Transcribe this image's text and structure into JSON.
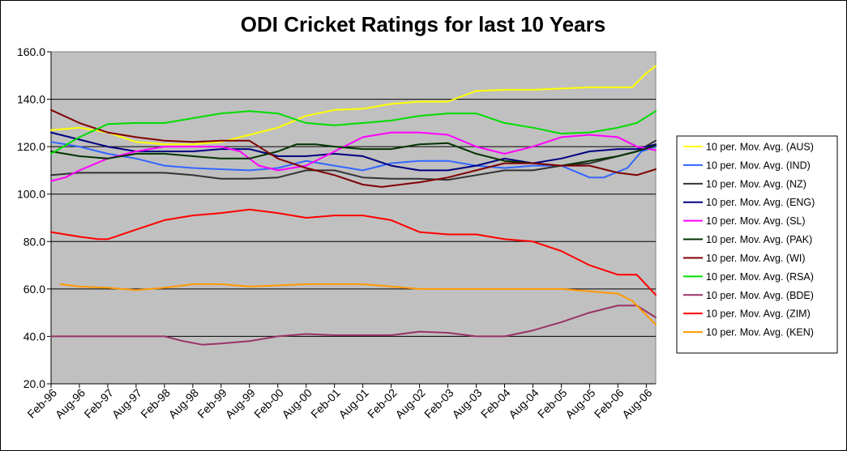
{
  "chart_data": {
    "type": "line",
    "title": "ODI Cricket Ratings for last 10 Years",
    "xlabel": "",
    "ylabel": "",
    "ylim": [
      20,
      160
    ],
    "yticks": [
      "20.0",
      "40.0",
      "60.0",
      "80.0",
      "100.0",
      "120.0",
      "140.0",
      "160.0"
    ],
    "xlim": [
      0,
      128
    ],
    "xtick_positions": [
      0,
      6,
      12,
      18,
      24,
      30,
      36,
      42,
      48,
      54,
      60,
      66,
      72,
      78,
      84,
      90,
      96,
      102,
      108,
      114,
      120,
      126
    ],
    "xtick_labels": [
      "Feb-96",
      "Aug-96",
      "Feb-97",
      "Aug-97",
      "Feb-98",
      "Aug-98",
      "Feb-99",
      "Aug-99",
      "Feb-00",
      "Aug-00",
      "Feb-01",
      "Aug-01",
      "Feb-02",
      "Aug-02",
      "Feb-03",
      "Aug-03",
      "Feb-04",
      "Aug-04",
      "Feb-05",
      "Aug-05",
      "Feb-06",
      "Aug-06"
    ],
    "x_unit": "months since Feb-96",
    "grid": "horizontal",
    "background": "#c0c0c0",
    "legend_position": "right",
    "series": [
      {
        "name": "10 per. Mov. Avg. (AUS)",
        "color": "#ffff00",
        "points": [
          [
            0,
            127
          ],
          [
            6,
            128
          ],
          [
            12,
            126
          ],
          [
            18,
            122
          ],
          [
            24,
            121
          ],
          [
            30,
            121
          ],
          [
            36,
            122
          ],
          [
            42,
            125
          ],
          [
            48,
            128
          ],
          [
            54,
            133
          ],
          [
            60,
            135.5
          ],
          [
            66,
            136
          ],
          [
            72,
            138
          ],
          [
            78,
            139
          ],
          [
            84,
            139
          ],
          [
            90,
            143.5
          ],
          [
            96,
            144
          ],
          [
            102,
            144
          ],
          [
            108,
            144.5
          ],
          [
            114,
            145
          ],
          [
            120,
            145
          ],
          [
            123,
            145
          ],
          [
            126,
            151
          ],
          [
            128,
            154
          ]
        ]
      },
      {
        "name": "10 per. Mov. Avg. (IND)",
        "color": "#3366ff",
        "points": [
          [
            0,
            122
          ],
          [
            6,
            120
          ],
          [
            12,
            117
          ],
          [
            18,
            115
          ],
          [
            24,
            112
          ],
          [
            30,
            111
          ],
          [
            36,
            110.5
          ],
          [
            42,
            110
          ],
          [
            48,
            111
          ],
          [
            54,
            114
          ],
          [
            60,
            112
          ],
          [
            66,
            110
          ],
          [
            72,
            113
          ],
          [
            78,
            114
          ],
          [
            84,
            114
          ],
          [
            90,
            112
          ],
          [
            96,
            111
          ],
          [
            102,
            112
          ],
          [
            108,
            112
          ],
          [
            114,
            107
          ],
          [
            117,
            107
          ],
          [
            122,
            111
          ],
          [
            125,
            118
          ],
          [
            128,
            120
          ]
        ]
      },
      {
        "name": "10 per. Mov. Avg. (NZ)",
        "color": "#333333",
        "points": [
          [
            0,
            108
          ],
          [
            6,
            109
          ],
          [
            12,
            109
          ],
          [
            18,
            109
          ],
          [
            24,
            109
          ],
          [
            30,
            108
          ],
          [
            36,
            106.5
          ],
          [
            42,
            106.5
          ],
          [
            48,
            107
          ],
          [
            54,
            110
          ],
          [
            60,
            110
          ],
          [
            66,
            107
          ],
          [
            72,
            106.5
          ],
          [
            78,
            106.5
          ],
          [
            84,
            106
          ],
          [
            90,
            108
          ],
          [
            96,
            110
          ],
          [
            102,
            110
          ],
          [
            108,
            112
          ],
          [
            114,
            113
          ],
          [
            120,
            116
          ],
          [
            124,
            118
          ],
          [
            128,
            122.5
          ]
        ]
      },
      {
        "name": "10 per. Mov. Avg. (ENG)",
        "color": "#000080",
        "points": [
          [
            0,
            126
          ],
          [
            6,
            123
          ],
          [
            12,
            120
          ],
          [
            18,
            118
          ],
          [
            24,
            118
          ],
          [
            30,
            118
          ],
          [
            36,
            119
          ],
          [
            42,
            119
          ],
          [
            48,
            116
          ],
          [
            54,
            116
          ],
          [
            60,
            117
          ],
          [
            66,
            116
          ],
          [
            72,
            112
          ],
          [
            78,
            110
          ],
          [
            84,
            110
          ],
          [
            90,
            112
          ],
          [
            96,
            115
          ],
          [
            102,
            113
          ],
          [
            108,
            115
          ],
          [
            114,
            118
          ],
          [
            120,
            119
          ],
          [
            124,
            119
          ],
          [
            128,
            121
          ]
        ]
      },
      {
        "name": "10 per. Mov. Avg. (SL)",
        "color": "#ff00ff",
        "points": [
          [
            0,
            105.5
          ],
          [
            3,
            107
          ],
          [
            6,
            110
          ],
          [
            12,
            115
          ],
          [
            18,
            118
          ],
          [
            24,
            120
          ],
          [
            30,
            120
          ],
          [
            36,
            120
          ],
          [
            40,
            118
          ],
          [
            44,
            112
          ],
          [
            48,
            110
          ],
          [
            54,
            112
          ],
          [
            60,
            118
          ],
          [
            66,
            124
          ],
          [
            72,
            126
          ],
          [
            78,
            126
          ],
          [
            84,
            125
          ],
          [
            90,
            120
          ],
          [
            96,
            117
          ],
          [
            102,
            120
          ],
          [
            108,
            124
          ],
          [
            114,
            125
          ],
          [
            120,
            124
          ],
          [
            124,
            120
          ],
          [
            128,
            118.5
          ]
        ]
      },
      {
        "name": "10 per. Mov. Avg. (PAK)",
        "color": "#003300",
        "points": [
          [
            0,
            118
          ],
          [
            6,
            116
          ],
          [
            12,
            115
          ],
          [
            18,
            117
          ],
          [
            24,
            117
          ],
          [
            30,
            116
          ],
          [
            36,
            115
          ],
          [
            42,
            115
          ],
          [
            48,
            118
          ],
          [
            52,
            121
          ],
          [
            56,
            121
          ],
          [
            60,
            120
          ],
          [
            66,
            119
          ],
          [
            72,
            119
          ],
          [
            78,
            121
          ],
          [
            84,
            121.5
          ],
          [
            90,
            117
          ],
          [
            96,
            114
          ],
          [
            102,
            113
          ],
          [
            108,
            112
          ],
          [
            114,
            114
          ],
          [
            120,
            116
          ],
          [
            124,
            118
          ],
          [
            128,
            120.5
          ]
        ]
      },
      {
        "name": "10 per. Mov. Avg. (WI)",
        "color": "#800000",
        "points": [
          [
            0,
            135.5
          ],
          [
            6,
            130
          ],
          [
            12,
            126
          ],
          [
            18,
            124
          ],
          [
            24,
            122.5
          ],
          [
            30,
            122
          ],
          [
            36,
            122.5
          ],
          [
            42,
            122.5
          ],
          [
            48,
            115
          ],
          [
            54,
            111
          ],
          [
            60,
            108
          ],
          [
            66,
            104
          ],
          [
            70,
            103
          ],
          [
            78,
            105
          ],
          [
            84,
            107
          ],
          [
            90,
            110
          ],
          [
            96,
            113
          ],
          [
            102,
            113
          ],
          [
            108,
            112
          ],
          [
            114,
            112
          ],
          [
            120,
            109
          ],
          [
            124,
            108
          ],
          [
            128,
            110.5
          ]
        ]
      },
      {
        "name": "10 per. Mov. Avg. (RSA)",
        "color": "#00dd00",
        "points": [
          [
            0,
            117
          ],
          [
            6,
            124
          ],
          [
            12,
            129.5
          ],
          [
            18,
            130
          ],
          [
            24,
            130
          ],
          [
            30,
            132
          ],
          [
            36,
            134
          ],
          [
            42,
            135
          ],
          [
            48,
            134
          ],
          [
            54,
            130
          ],
          [
            60,
            129
          ],
          [
            66,
            130
          ],
          [
            72,
            131
          ],
          [
            78,
            133
          ],
          [
            84,
            134
          ],
          [
            90,
            134
          ],
          [
            96,
            130
          ],
          [
            102,
            128
          ],
          [
            108,
            125.5
          ],
          [
            114,
            126
          ],
          [
            120,
            128
          ],
          [
            124,
            130
          ],
          [
            128,
            135
          ]
        ]
      },
      {
        "name": "10 per. Mov. Avg. (BDE)",
        "color": "#993366",
        "points": [
          [
            0,
            40
          ],
          [
            6,
            40
          ],
          [
            12,
            40
          ],
          [
            18,
            40
          ],
          [
            24,
            40
          ],
          [
            28,
            38
          ],
          [
            32,
            36.5
          ],
          [
            36,
            37
          ],
          [
            42,
            38
          ],
          [
            48,
            40
          ],
          [
            54,
            41
          ],
          [
            60,
            40.5
          ],
          [
            66,
            40.5
          ],
          [
            72,
            40.5
          ],
          [
            78,
            42
          ],
          [
            84,
            41.5
          ],
          [
            90,
            40
          ],
          [
            96,
            40
          ],
          [
            102,
            42.5
          ],
          [
            108,
            46
          ],
          [
            114,
            50
          ],
          [
            120,
            53
          ],
          [
            124,
            53
          ],
          [
            128,
            48
          ]
        ]
      },
      {
        "name": "10 per. Mov. Avg. (ZIM)",
        "color": "#ff0000",
        "points": [
          [
            0,
            84
          ],
          [
            6,
            82
          ],
          [
            10,
            81
          ],
          [
            12,
            81
          ],
          [
            18,
            85
          ],
          [
            24,
            89
          ],
          [
            30,
            91
          ],
          [
            36,
            92
          ],
          [
            42,
            93.5
          ],
          [
            48,
            92
          ],
          [
            54,
            90
          ],
          [
            60,
            91
          ],
          [
            66,
            91
          ],
          [
            72,
            89
          ],
          [
            78,
            84
          ],
          [
            84,
            83
          ],
          [
            90,
            83
          ],
          [
            96,
            81
          ],
          [
            102,
            80
          ],
          [
            108,
            76
          ],
          [
            114,
            70
          ],
          [
            120,
            66
          ],
          [
            124,
            66
          ],
          [
            128,
            57.5
          ]
        ]
      },
      {
        "name": "10 per. Mov. Avg. (KEN)",
        "color": "#ff9900",
        "points": [
          [
            2,
            62
          ],
          [
            6,
            61
          ],
          [
            12,
            60.5
          ],
          [
            18,
            59.5
          ],
          [
            24,
            60.5
          ],
          [
            30,
            62
          ],
          [
            36,
            62
          ],
          [
            42,
            61
          ],
          [
            48,
            61.5
          ],
          [
            54,
            62
          ],
          [
            60,
            62
          ],
          [
            66,
            62
          ],
          [
            72,
            61
          ],
          [
            78,
            60
          ],
          [
            84,
            60
          ],
          [
            90,
            60
          ],
          [
            96,
            60
          ],
          [
            102,
            60
          ],
          [
            108,
            60
          ],
          [
            114,
            59
          ],
          [
            120,
            58
          ],
          [
            123,
            55
          ],
          [
            126,
            49
          ],
          [
            128,
            45
          ]
        ]
      }
    ]
  }
}
